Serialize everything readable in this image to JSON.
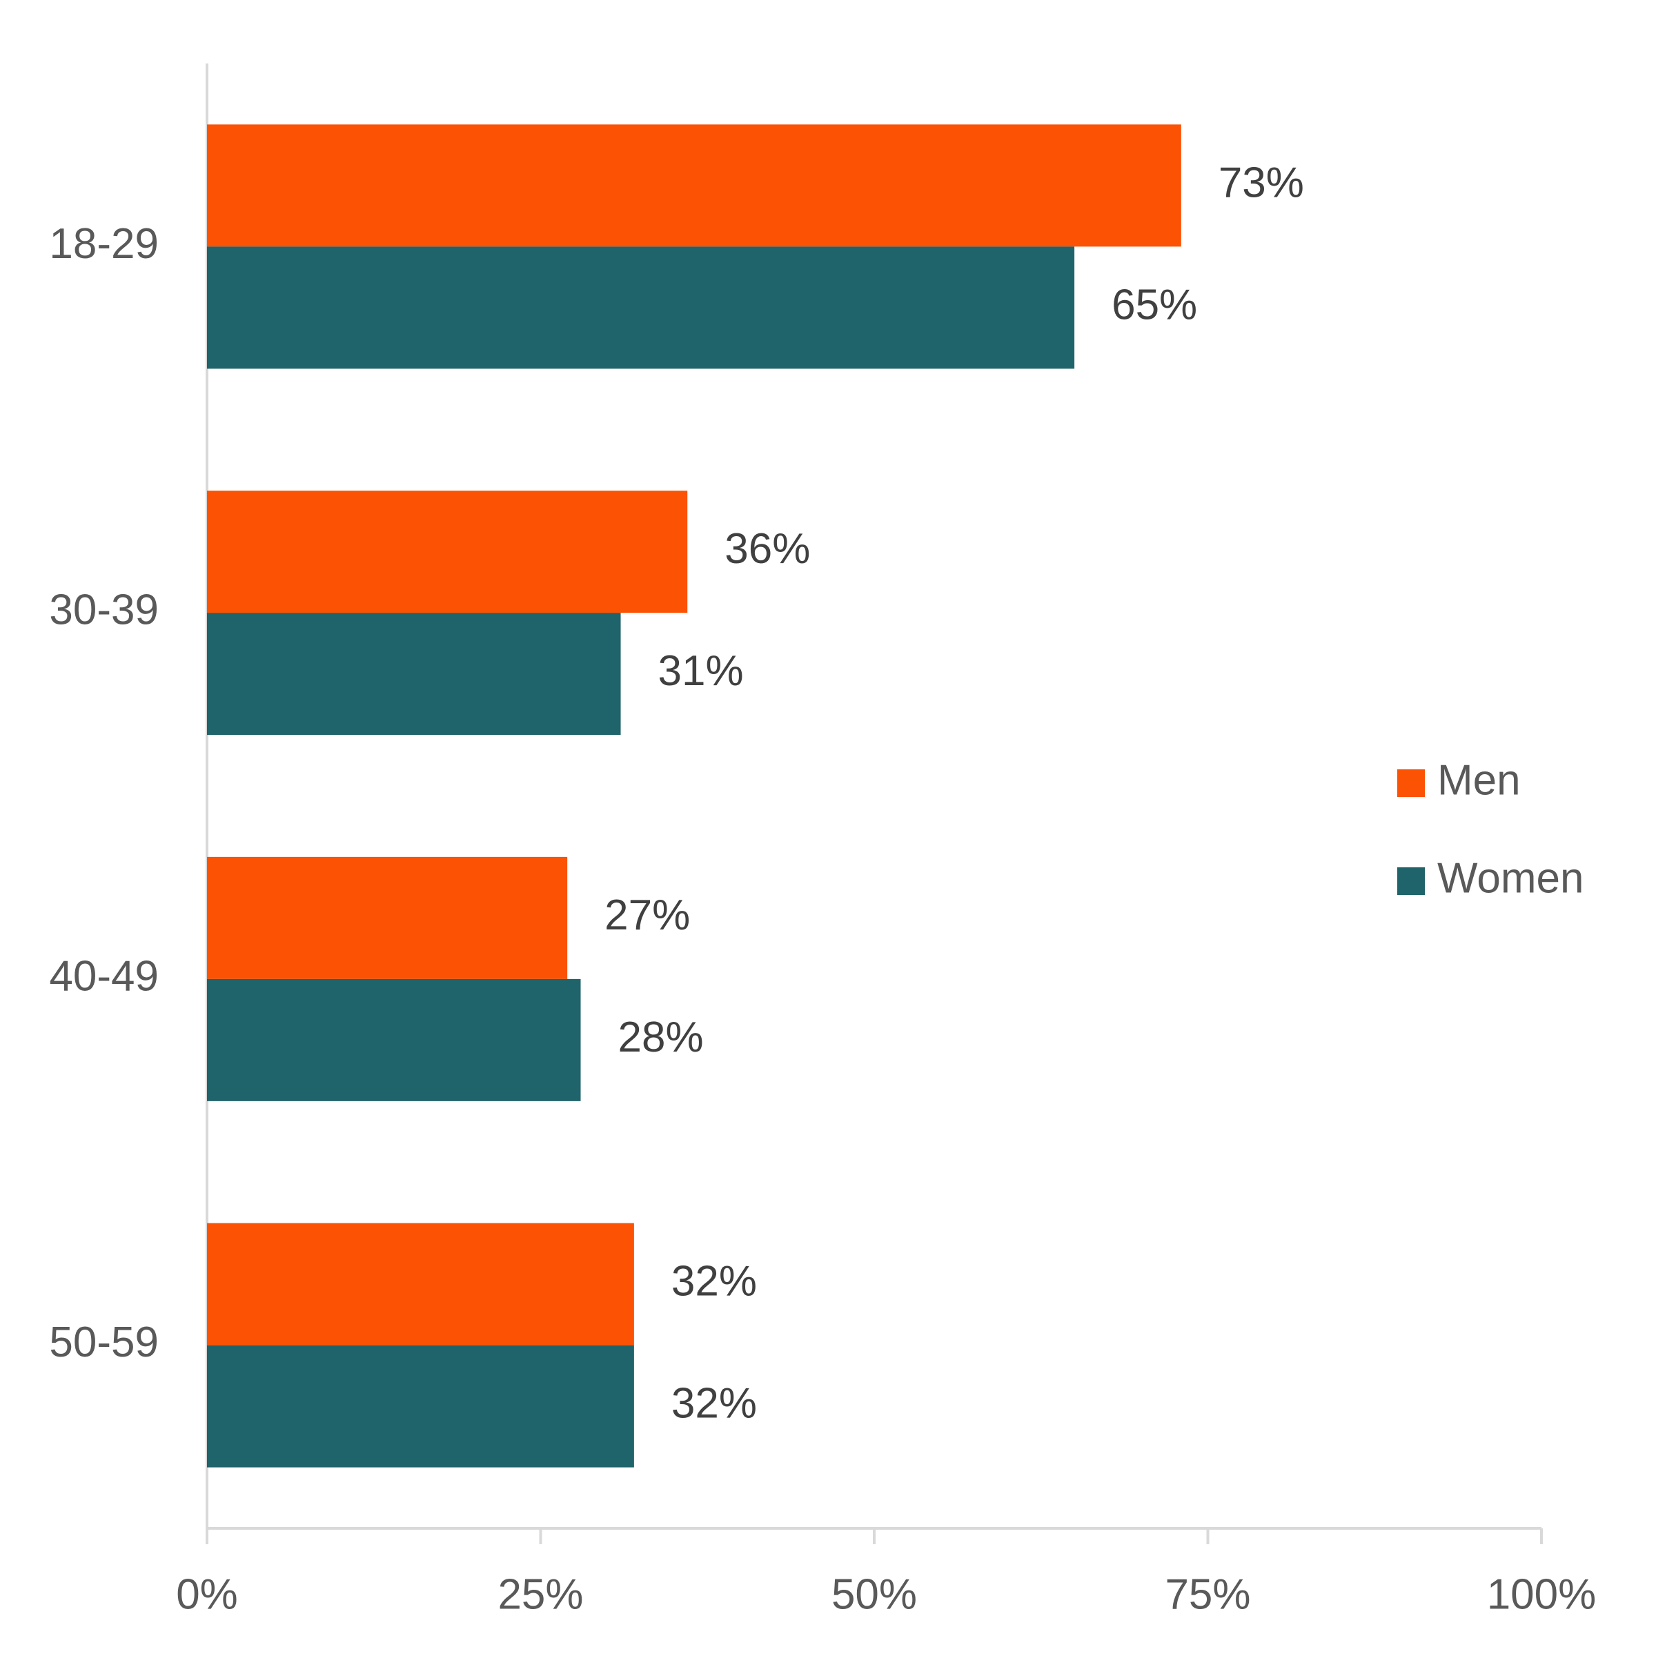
{
  "chart_data": {
    "type": "bar",
    "orientation": "horizontal",
    "categories": [
      "18-29",
      "30-39",
      "40-49",
      "50-59"
    ],
    "series": [
      {
        "name": "Men",
        "color": "#fc5203",
        "values": [
          73,
          36,
          27,
          32
        ],
        "value_labels": [
          "73%",
          "36%",
          "27%",
          "32%"
        ]
      },
      {
        "name": "Women",
        "color": "#1f636b",
        "values": [
          65,
          31,
          28,
          32
        ],
        "value_labels": [
          "65%",
          "31%",
          "28%",
          "32%"
        ]
      }
    ],
    "xlim": [
      0,
      100
    ],
    "xticks": [
      {
        "value": 0,
        "label": "0%"
      },
      {
        "value": 25,
        "label": "25%"
      },
      {
        "value": 50,
        "label": "50%"
      },
      {
        "value": 75,
        "label": "75%"
      },
      {
        "value": 100,
        "label": "100%"
      }
    ],
    "legend": "right"
  }
}
